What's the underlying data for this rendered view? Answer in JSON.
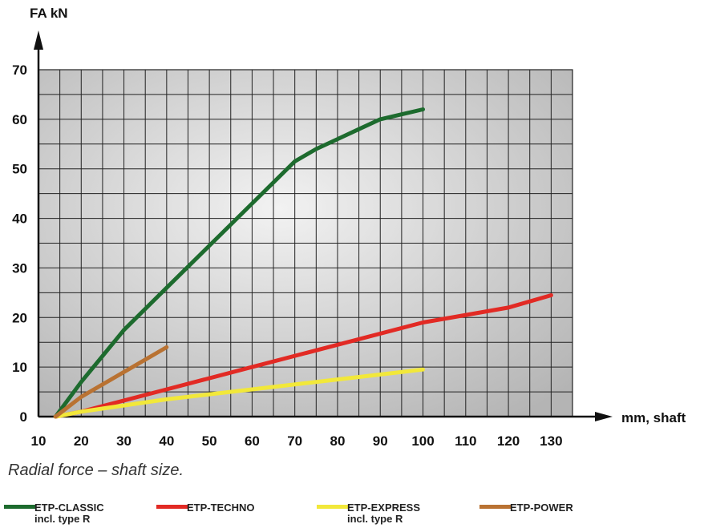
{
  "chart_data": {
    "type": "line",
    "ylabel": "FA kN",
    "xlabel": "mm, shaft",
    "xlim": [
      10,
      135
    ],
    "ylim": [
      0,
      70
    ],
    "x_ticks": [
      "10",
      "20",
      "30",
      "40",
      "50",
      "60",
      "70",
      "80",
      "90",
      "100",
      "110",
      "120",
      "130"
    ],
    "y_ticks": [
      "0",
      "10",
      "20",
      "30",
      "40",
      "50",
      "60",
      "70"
    ],
    "grid": true,
    "series": [
      {
        "name": "ETP-CLASSIC",
        "subname": "incl. type R",
        "color": "#1d6b2e",
        "x": [
          14,
          20,
          30,
          40,
          50,
          60,
          70,
          75,
          80,
          85,
          90,
          95,
          100
        ],
        "y": [
          0,
          7,
          17.5,
          26,
          34.5,
          43,
          51.5,
          54,
          56,
          58,
          60,
          61,
          62
        ]
      },
      {
        "name": "ETP-TECHNO",
        "subname": "",
        "color": "#e22a24",
        "x": [
          14,
          20,
          40,
          60,
          80,
          100,
          120,
          130
        ],
        "y": [
          0,
          1,
          5.5,
          10,
          14.5,
          19,
          22,
          24.5
        ]
      },
      {
        "name": "ETP-EXPRESS",
        "subname": "incl. type R",
        "color": "#f2e83a",
        "x": [
          14,
          20,
          40,
          60,
          80,
          100
        ],
        "y": [
          0,
          1,
          3.5,
          5.5,
          7.5,
          9.5
        ]
      },
      {
        "name": "ETP-POWER",
        "subname": "",
        "color": "#b97232",
        "x": [
          14,
          20,
          30,
          40
        ],
        "y": [
          0,
          4,
          9,
          14
        ]
      }
    ]
  },
  "caption": "Radial force – shaft size.",
  "colors": {
    "plot_background_light": "#f2f2f2",
    "plot_background_dark": "#b4b4b4",
    "grid": "#222222",
    "axis": "#111111"
  }
}
